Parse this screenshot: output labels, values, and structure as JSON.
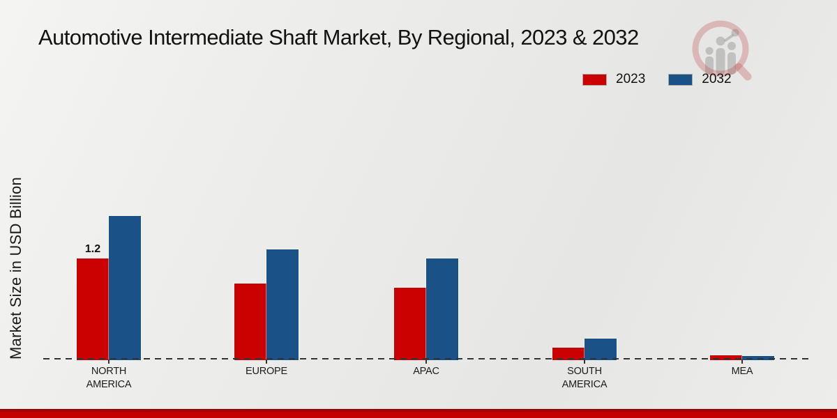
{
  "title": "Automotive Intermediate Shaft Market, By Regional, 2023 & 2032",
  "y_axis_label": "Market Size in USD Billion",
  "legend": [
    {
      "label": "2023",
      "color": "#cb0001"
    },
    {
      "label": "2032",
      "color": "#1a5288"
    }
  ],
  "chart_data": {
    "type": "bar",
    "title": "Automotive Intermediate Shaft Market, By Regional, 2023 & 2032",
    "ylabel": "Market Size in USD Billion",
    "xlabel": "",
    "categories": [
      "NORTH AMERICA",
      "EUROPE",
      "APAC",
      "SOUTH AMERICA",
      "MEA"
    ],
    "series": [
      {
        "name": "2023",
        "color": "#cb0001",
        "values": [
          1.2,
          0.9,
          0.85,
          0.15,
          0.06
        ]
      },
      {
        "name": "2032",
        "color": "#1a5288",
        "values": [
          1.7,
          1.3,
          1.2,
          0.25,
          0.05
        ]
      }
    ],
    "annotations": [
      {
        "series_index": 0,
        "category_index": 0,
        "text": "1.2"
      }
    ],
    "ylim": [
      0,
      2
    ],
    "grid": false,
    "y_ticks_visible": false,
    "baseline_style": "dashed",
    "legend_position": "top-right"
  },
  "watermark": {
    "name": "magnifier-analytics-logo"
  },
  "footer": {
    "band_color": "#c40000"
  }
}
